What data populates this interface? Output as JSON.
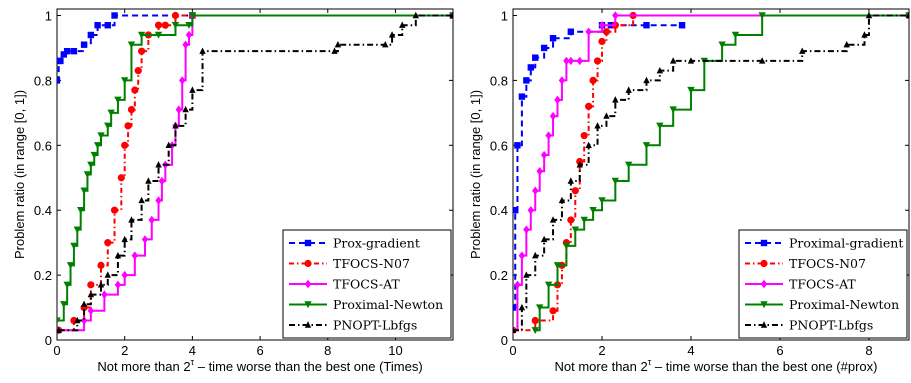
{
  "colors": {
    "prox": "#0000ff",
    "n07": "#ff0000",
    "at": "#ff00ff",
    "newton": "#008000",
    "lbfgs": "#000000"
  },
  "chart_data": [
    {
      "type": "line",
      "step": true,
      "xlabel_main": "Not more than 2",
      "xlabel_sup": "τ",
      "xlabel_rest": " – time worse than the best one (Times)",
      "ylabel": "Problem ratio (in range [0, 1])",
      "xlim": [
        0,
        11.7
      ],
      "ylim": [
        0,
        1.02
      ],
      "xticks": [
        "0",
        "2",
        "4",
        "6",
        "8",
        "10"
      ],
      "xtick_values": [
        0,
        2,
        4,
        6,
        8,
        10
      ],
      "yticks": [
        "0",
        "0.2",
        "0.4",
        "0.6",
        "0.8",
        "1"
      ],
      "ytick_values": [
        0,
        0.2,
        0.4,
        0.6,
        0.8,
        1
      ],
      "legend_position": "bottom-right",
      "series": [
        {
          "name": "Prox-gradient",
          "key": "prox",
          "dash": "6,4",
          "marker": "square",
          "x": [
            0,
            0.05,
            0.1,
            0.2,
            0.3,
            0.5,
            0.8,
            1.0,
            1.2,
            1.5,
            1.7,
            4.0,
            11.7
          ],
          "y": [
            0.8,
            0.86,
            0.86,
            0.88,
            0.89,
            0.89,
            0.91,
            0.94,
            0.97,
            0.97,
            1.0,
            1.0,
            1.0
          ]
        },
        {
          "name": "TFOCS-N07",
          "key": "n07",
          "dash": "5,3,1.5,3",
          "marker": "circle",
          "x": [
            0.05,
            0.5,
            0.8,
            1.0,
            1.3,
            1.5,
            1.7,
            1.9,
            2.0,
            2.1,
            2.2,
            2.3,
            2.4,
            2.5,
            2.7,
            3.0,
            3.2,
            3.5,
            4.0,
            11.7
          ],
          "y": [
            0.03,
            0.06,
            0.1,
            0.17,
            0.23,
            0.3,
            0.4,
            0.5,
            0.6,
            0.66,
            0.71,
            0.77,
            0.83,
            0.89,
            0.94,
            0.97,
            0.97,
            1.0,
            1.0,
            1.0
          ]
        },
        {
          "name": "TFOCS-AT",
          "key": "at",
          "dash": "",
          "marker": "diamond",
          "x": [
            0.05,
            0.8,
            1.0,
            1.4,
            1.8,
            2.0,
            2.3,
            2.6,
            2.8,
            3.0,
            3.1,
            3.2,
            3.4,
            3.5,
            3.6,
            3.7,
            3.8,
            3.9,
            4.0,
            11.7
          ],
          "y": [
            0.03,
            0.06,
            0.09,
            0.14,
            0.17,
            0.2,
            0.26,
            0.31,
            0.37,
            0.43,
            0.49,
            0.54,
            0.6,
            0.66,
            0.71,
            0.8,
            0.91,
            0.94,
            1.0,
            1.0
          ]
        },
        {
          "name": "Proximal-Newton",
          "key": "newton",
          "dash": "",
          "marker": "tri-down",
          "x": [
            0,
            0.2,
            0.3,
            0.4,
            0.5,
            0.6,
            0.7,
            0.8,
            0.9,
            1.0,
            1.1,
            1.2,
            1.3,
            1.5,
            1.6,
            1.8,
            2.0,
            2.2,
            2.5,
            3.0,
            3.5,
            3.9,
            4.0,
            11.7
          ],
          "y": [
            0.06,
            0.11,
            0.17,
            0.23,
            0.29,
            0.34,
            0.4,
            0.46,
            0.51,
            0.54,
            0.57,
            0.6,
            0.63,
            0.66,
            0.7,
            0.74,
            0.8,
            0.91,
            0.94,
            0.94,
            0.97,
            0.97,
            1.0,
            1.0
          ]
        },
        {
          "name": "PNOPT-Lbfgs",
          "key": "lbfgs",
          "dash": "6,3,1.5,3",
          "marker": "tri-up",
          "x": [
            0.05,
            0.6,
            0.8,
            1.0,
            1.3,
            1.5,
            1.8,
            2.0,
            2.2,
            2.5,
            2.7,
            3.0,
            3.3,
            3.5,
            3.8,
            4.0,
            4.3,
            8.2,
            8.3,
            9.7,
            9.9,
            10.2,
            10.6,
            11.7
          ],
          "y": [
            0.03,
            0.06,
            0.11,
            0.14,
            0.17,
            0.2,
            0.26,
            0.31,
            0.37,
            0.43,
            0.49,
            0.54,
            0.6,
            0.66,
            0.71,
            0.77,
            0.89,
            0.89,
            0.91,
            0.91,
            0.94,
            0.97,
            1.0,
            1.0
          ]
        }
      ]
    },
    {
      "type": "line",
      "step": true,
      "xlabel_main": "Not more than 2",
      "xlabel_sup": "τ",
      "xlabel_rest": " – time worse than the best one (#prox)",
      "ylabel": "Problem ratio (in range [0, 1])",
      "xlim": [
        0,
        8.9
      ],
      "ylim": [
        0,
        1.02
      ],
      "xticks": [
        "0",
        "2",
        "4",
        "6",
        "8"
      ],
      "xtick_values": [
        0,
        2,
        4,
        6,
        8
      ],
      "yticks": [
        "0",
        "0.2",
        "0.4",
        "0.6",
        "0.8",
        "1"
      ],
      "ytick_values": [
        0,
        0.2,
        0.4,
        0.6,
        0.8,
        1
      ],
      "legend_position": "bottom-right",
      "series": [
        {
          "name": "Proximal-gradient",
          "key": "prox",
          "dash": "6,4",
          "marker": "square",
          "x": [
            0,
            0.05,
            0.1,
            0.2,
            0.3,
            0.4,
            0.5,
            0.7,
            0.9,
            1.3,
            2.0,
            2.2,
            3.0,
            3.8
          ],
          "y": [
            0.1,
            0.4,
            0.6,
            0.75,
            0.8,
            0.84,
            0.87,
            0.9,
            0.93,
            0.95,
            0.97,
            0.97,
            0.97,
            0.97
          ]
        },
        {
          "name": "TFOCS-N07",
          "key": "n07",
          "dash": "5,3,1.5,3",
          "marker": "circle",
          "x": [
            0,
            0.5,
            0.9,
            1.0,
            1.1,
            1.2,
            1.3,
            1.4,
            1.5,
            1.6,
            1.7,
            1.8,
            1.9,
            2.0,
            2.1,
            2.3,
            2.7,
            8.9
          ],
          "y": [
            0.03,
            0.06,
            0.09,
            0.17,
            0.23,
            0.3,
            0.37,
            0.46,
            0.55,
            0.63,
            0.72,
            0.8,
            0.86,
            0.92,
            0.95,
            0.97,
            1.0,
            1.0
          ]
        },
        {
          "name": "TFOCS-AT",
          "key": "at",
          "dash": "",
          "marker": "diamond",
          "x": [
            0,
            0.1,
            0.2,
            0.3,
            0.4,
            0.5,
            0.6,
            0.7,
            0.8,
            0.9,
            1.0,
            1.1,
            1.2,
            1.3,
            1.5,
            1.7,
            2.0,
            2.3,
            8.9
          ],
          "y": [
            0.03,
            0.17,
            0.26,
            0.34,
            0.4,
            0.46,
            0.52,
            0.57,
            0.63,
            0.69,
            0.74,
            0.8,
            0.86,
            0.86,
            0.86,
            0.95,
            0.97,
            1.0,
            1.0
          ]
        },
        {
          "name": "Proximal-Newton",
          "key": "newton",
          "dash": "",
          "marker": "tri-down",
          "x": [
            0.5,
            0.6,
            0.8,
            1.0,
            1.2,
            1.4,
            1.6,
            1.8,
            2.0,
            2.3,
            2.6,
            3.0,
            3.3,
            3.6,
            4.0,
            4.3,
            4.7,
            5.0,
            5.6,
            8.9
          ],
          "y": [
            0.03,
            0.1,
            0.17,
            0.23,
            0.29,
            0.34,
            0.37,
            0.4,
            0.43,
            0.49,
            0.54,
            0.6,
            0.66,
            0.71,
            0.77,
            0.86,
            0.91,
            0.94,
            1.0,
            1.0
          ]
        },
        {
          "name": "PNOPT-Lbfgs",
          "key": "lbfgs",
          "dash": "6,3,1.5,3",
          "marker": "tri-up",
          "x": [
            0,
            0.2,
            0.3,
            0.5,
            0.7,
            0.9,
            1.1,
            1.3,
            1.5,
            1.7,
            1.9,
            2.1,
            2.3,
            2.6,
            3.0,
            3.3,
            3.6,
            4.0,
            5.6,
            6.5,
            7.5,
            7.9,
            8.0,
            8.9
          ],
          "y": [
            0.03,
            0.1,
            0.2,
            0.26,
            0.31,
            0.37,
            0.43,
            0.49,
            0.54,
            0.6,
            0.66,
            0.69,
            0.74,
            0.77,
            0.8,
            0.83,
            0.86,
            0.86,
            0.86,
            0.89,
            0.91,
            0.94,
            1.0,
            1.0
          ]
        }
      ]
    }
  ]
}
